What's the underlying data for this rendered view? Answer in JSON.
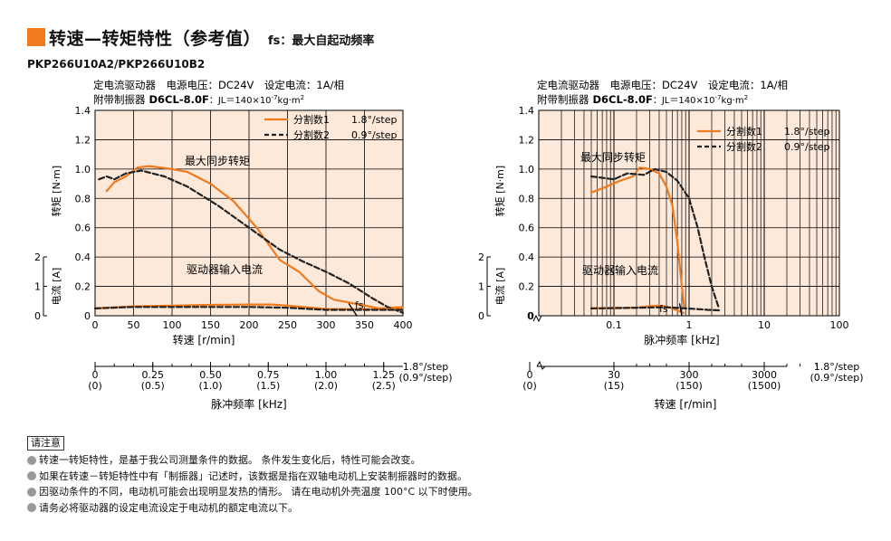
{
  "header": {
    "title": "转速—转矩特性（参考值）",
    "subtitle": "fs：最大自起动频率",
    "model": "PKP266U10A2/PKP266U10B2"
  },
  "colors": {
    "accent": "#f07a1e",
    "panel": "#fde9d9",
    "step1": "#f07a1e",
    "step2": "#222222"
  },
  "chart_data": [
    {
      "type": "line",
      "x_scale": "linear",
      "conditions": [
        "定电流驱动器　电源电压：DC24V　设定电流：1A/相",
        "附带制振器",
        "D6CL-8.0F",
        "：JL＝140×10",
        "-7",
        "kg·m",
        "2"
      ],
      "xlabel": "转速 [r/min]",
      "ylabel_torque": "转矩 [N·m]",
      "ylabel_current": "电流 [A]",
      "xlim": [
        0,
        400
      ],
      "torque_ylim": [
        0,
        1.4
      ],
      "current_ylim": [
        0,
        2
      ],
      "x_ticks": [
        "0",
        "50",
        "100",
        "150",
        "200",
        "250",
        "300",
        "350",
        "400"
      ],
      "torque_ticks": [
        "0",
        "0.2",
        "0.4",
        "0.6",
        "0.8",
        "1.0",
        "1.2",
        "1.4"
      ],
      "current_ticks": [
        "0",
        "1",
        "2"
      ],
      "secondary_axis": {
        "label": "脉冲频率 [kHz]",
        "ticks": [
          {
            "x": 0,
            "a": "0",
            "b": "(0)"
          },
          {
            "x": 75,
            "a": "0.25",
            "b": "(0.5)"
          },
          {
            "x": 150,
            "a": "0.50",
            "b": "(1.0)"
          },
          {
            "x": 225,
            "a": "0.75",
            "b": "(1.5)"
          },
          {
            "x": 300,
            "a": "1.00",
            "b": "(2.0)"
          },
          {
            "x": 375,
            "a": "1.25",
            "b": "(2.5)"
          }
        ],
        "unit_a": "1.8°/step",
        "unit_b": "(0.9°/step)"
      },
      "legend": [
        "分割数1",
        "1.8°/step",
        "分割数2",
        "0.9°/step"
      ],
      "annotations": {
        "max_torque": "最大同步转矩",
        "driver_current": "驱动器输入电流",
        "fs": "fs"
      },
      "series": [
        {
          "name": "分割数1 1.8°/step",
          "role": "torque",
          "points": [
            [
              15,
              0.85
            ],
            [
              25,
              0.91
            ],
            [
              40,
              0.95
            ],
            [
              55,
              1.01
            ],
            [
              70,
              1.02
            ],
            [
              100,
              1.0
            ],
            [
              120,
              0.98
            ],
            [
              150,
              0.9
            ],
            [
              180,
              0.78
            ],
            [
              210,
              0.6
            ],
            [
              240,
              0.38
            ],
            [
              265,
              0.3
            ],
            [
              290,
              0.17
            ],
            [
              310,
              0.11
            ],
            [
              340,
              0.08
            ],
            [
              370,
              0.05
            ],
            [
              400,
              0.06
            ]
          ]
        },
        {
          "name": "分割数2 0.9°/step",
          "role": "torque",
          "points": [
            [
              5,
              0.93
            ],
            [
              15,
              0.95
            ],
            [
              25,
              0.93
            ],
            [
              40,
              0.97
            ],
            [
              60,
              0.99
            ],
            [
              90,
              0.95
            ],
            [
              120,
              0.88
            ],
            [
              160,
              0.75
            ],
            [
              200,
              0.6
            ],
            [
              240,
              0.45
            ],
            [
              270,
              0.37
            ],
            [
              300,
              0.3
            ],
            [
              330,
              0.22
            ],
            [
              360,
              0.12
            ],
            [
              380,
              0.06
            ],
            [
              400,
              0.02
            ]
          ]
        },
        {
          "name": "分割数1 1.8°/step",
          "role": "current",
          "points": [
            [
              0,
              0.25
            ],
            [
              50,
              0.32
            ],
            [
              100,
              0.34
            ],
            [
              150,
              0.37
            ],
            [
              200,
              0.38
            ],
            [
              230,
              0.38
            ],
            [
              250,
              0.34
            ],
            [
              300,
              0.23
            ],
            [
              350,
              0.22
            ],
            [
              400,
              0.23
            ]
          ]
        },
        {
          "name": "分割数2 0.9°/step",
          "role": "current",
          "points": [
            [
              0,
              0.25
            ],
            [
              50,
              0.3
            ],
            [
              100,
              0.3
            ],
            [
              150,
              0.3
            ],
            [
              200,
              0.3
            ],
            [
              250,
              0.27
            ],
            [
              300,
              0.2
            ],
            [
              350,
              0.2
            ],
            [
              400,
              0.2
            ]
          ]
        },
        {
          "name": "fs",
          "role": "fs_marker",
          "points": [
            [
              330,
              0.08
            ],
            [
              340,
              0.0
            ]
          ]
        }
      ]
    },
    {
      "type": "line",
      "x_scale": "log",
      "conditions": [
        "定电流驱动器　电源电压：DC24V　设定电流：1A/相",
        "附带制振器",
        "D6CL-8.0F",
        "：JL＝140×10",
        "-7",
        "kg·m",
        "2"
      ],
      "xlabel": "脉冲频率 [kHz]",
      "ylabel_torque": "转矩 [N·m]",
      "ylabel_current": "电流 [A]",
      "xlim": [
        0.01,
        100
      ],
      "torque_ylim": [
        0,
        1.4
      ],
      "current_ylim": [
        0,
        2
      ],
      "x_ticks": [
        "0",
        "0.1",
        "1",
        "10",
        "100"
      ],
      "torque_ticks": [
        "0",
        "0.2",
        "0.4",
        "0.6",
        "0.8",
        "1.0",
        "1.2",
        "1.4"
      ],
      "current_ticks": [
        "0",
        "1",
        "2"
      ],
      "secondary_axis": {
        "label": "转速 [r/min]",
        "ticks": [
          {
            "x": 0.1,
            "a": "30",
            "b": "(15)"
          },
          {
            "x": 1,
            "a": "300",
            "b": "(150)"
          },
          {
            "x": 10,
            "a": "3000",
            "b": "(1500)"
          }
        ],
        "zero": {
          "a": "0",
          "b": "(0)"
        },
        "unit_a": "1.8°/step",
        "unit_b": "(0.9°/step)"
      },
      "legend": [
        "分割数1",
        "1.8°/step",
        "分割数2",
        "0.9°/step"
      ],
      "annotations": {
        "max_torque": "最大同步转矩",
        "driver_current": "驱动器输入电流",
        "fs": "fs"
      },
      "series": [
        {
          "name": "分割数1 1.8°/step",
          "role": "torque",
          "points": [
            [
              0.05,
              0.84
            ],
            [
              0.08,
              0.88
            ],
            [
              0.12,
              0.92
            ],
            [
              0.18,
              0.95
            ],
            [
              0.22,
              1.01
            ],
            [
              0.3,
              1.0
            ],
            [
              0.4,
              0.97
            ],
            [
              0.5,
              0.88
            ],
            [
              0.6,
              0.75
            ],
            [
              0.7,
              0.5
            ],
            [
              0.8,
              0.2
            ],
            [
              0.86,
              0.06
            ]
          ]
        },
        {
          "name": "分割数2 0.9°/step",
          "role": "torque",
          "points": [
            [
              0.05,
              0.95
            ],
            [
              0.1,
              0.93
            ],
            [
              0.15,
              0.97
            ],
            [
              0.25,
              0.96
            ],
            [
              0.35,
              1.0
            ],
            [
              0.5,
              0.98
            ],
            [
              0.7,
              0.92
            ],
            [
              1.0,
              0.8
            ],
            [
              1.3,
              0.6
            ],
            [
              1.6,
              0.4
            ],
            [
              2.0,
              0.2
            ],
            [
              2.5,
              0.05
            ]
          ]
        },
        {
          "name": "分割数1 1.8°/step",
          "role": "current",
          "points": [
            [
              0.05,
              0.25
            ],
            [
              0.1,
              0.27
            ],
            [
              0.2,
              0.27
            ],
            [
              0.3,
              0.33
            ],
            [
              0.4,
              0.34
            ],
            [
              0.5,
              0.31
            ],
            [
              0.6,
              0.25
            ],
            [
              0.7,
              0.18
            ],
            [
              0.85,
              0.1
            ]
          ]
        },
        {
          "name": "分割数2 0.9°/step",
          "role": "current",
          "points": [
            [
              0.05,
              0.25
            ],
            [
              0.1,
              0.26
            ],
            [
              0.2,
              0.27
            ],
            [
              0.3,
              0.28
            ],
            [
              0.5,
              0.29
            ],
            [
              0.8,
              0.26
            ],
            [
              1.2,
              0.23
            ],
            [
              1.8,
              0.2
            ],
            [
              2.6,
              0.18
            ]
          ]
        },
        {
          "name": "fs",
          "role": "fs_marker",
          "points": [
            [
              0.75,
              0.08
            ],
            [
              0.8,
              0.0
            ]
          ]
        }
      ]
    }
  ],
  "notes": {
    "label": "请注意",
    "lines": [
      "转速一转矩特性，是基于我公司测量条件的数据。 条件发生变化后，特性可能会改变。",
      "如果在转速－转矩特性中有「制振器」记述时，该数据是指在双轴电动机上安装制振器时的数据。",
      "因驱动条件的不同，电动机可能会出现明显发热的情形。 请在电动机外壳温度 100°C 以下时使用。",
      "请务必将驱动器的设定电流设定于电动机的额定电流以下。"
    ]
  }
}
